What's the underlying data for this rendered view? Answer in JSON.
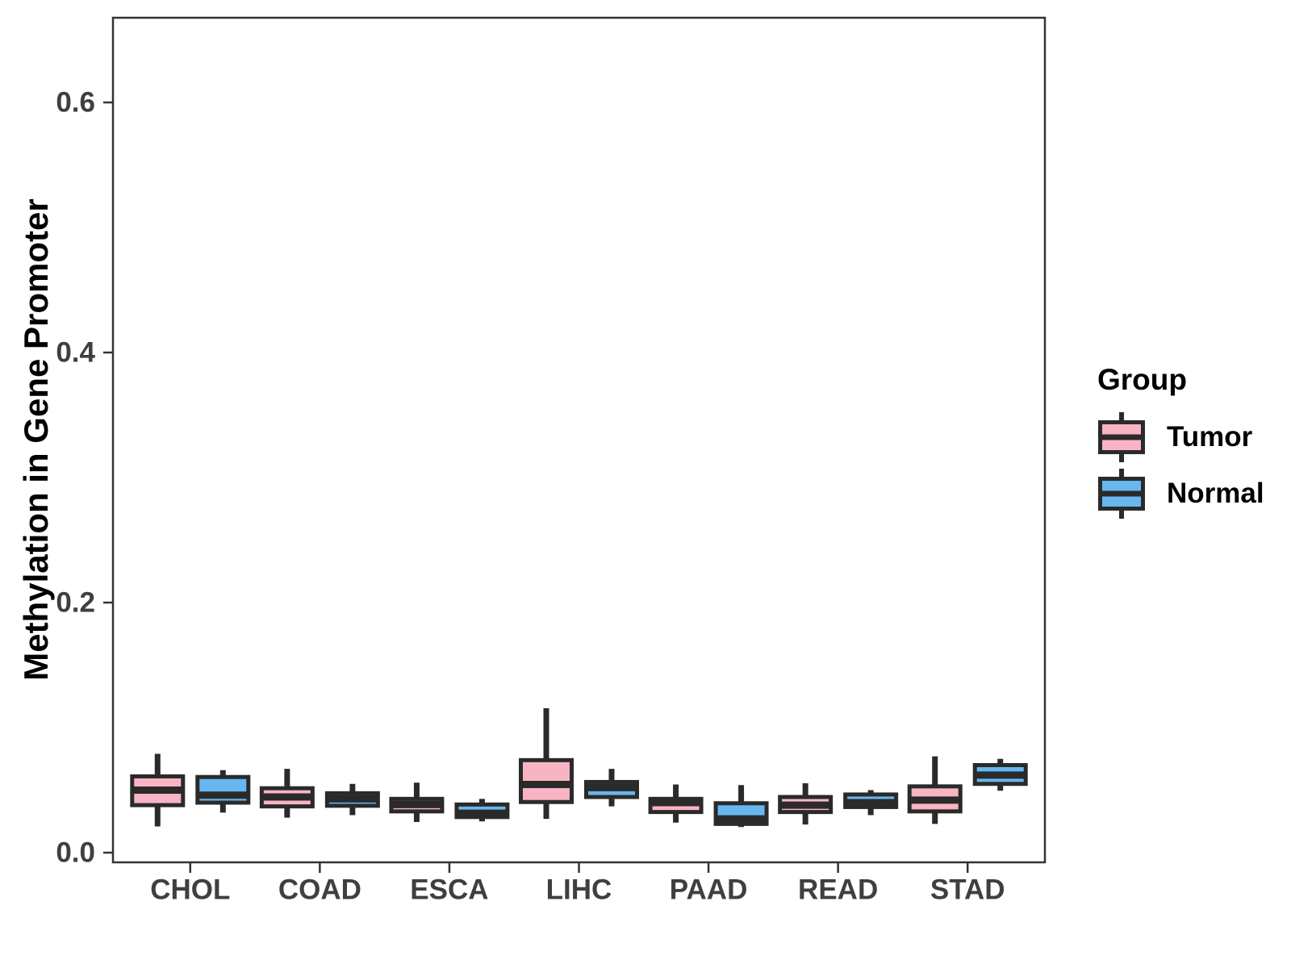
{
  "figure": {
    "background": "#FFFFFF"
  },
  "y_axis": {
    "title": "Methylation in Gene Promoter",
    "tick_labels": [
      "0.0",
      "0.2",
      "0.4",
      "0.6"
    ]
  },
  "x_axis": {
    "categories": [
      "CHOL",
      "COAD",
      "ESCA",
      "LIHC",
      "PAAD",
      "READ",
      "STAD"
    ]
  },
  "legend": {
    "title": "Group",
    "items": [
      {
        "label": "Tumor",
        "color": "#F9B4C3"
      },
      {
        "label": "Normal",
        "color": "#67B7F0"
      }
    ]
  },
  "style": {
    "box_border_color": "#2A2A2A",
    "panel_border_color": "#333333",
    "axis_text_color": "#3F3F3F",
    "tumor_fill": "#F9B4C3",
    "normal_fill": "#67B7F0"
  },
  "chart_data": {
    "type": "boxplot",
    "title": "",
    "xlabel": "",
    "ylabel": "Methylation in Gene Promoter",
    "ylim": [
      -0.008,
      0.668
    ],
    "yticks": [
      0.0,
      0.2,
      0.4,
      0.6
    ],
    "grid": false,
    "legend_position": "right",
    "categories": [
      "CHOL",
      "COAD",
      "ESCA",
      "LIHC",
      "PAAD",
      "READ",
      "STAD"
    ],
    "series": [
      {
        "name": "Tumor",
        "color": "#F9B4C3",
        "boxes": [
          {
            "category": "CHOL",
            "whisker_low": 0.021,
            "q1": 0.038,
            "median": 0.05,
            "q3": 0.061,
            "whisker_high": 0.079
          },
          {
            "category": "COAD",
            "whisker_low": 0.028,
            "q1": 0.037,
            "median": 0.0445,
            "q3": 0.0515,
            "whisker_high": 0.067
          },
          {
            "category": "ESCA",
            "whisker_low": 0.0245,
            "q1": 0.033,
            "median": 0.0385,
            "q3": 0.043,
            "whisker_high": 0.056
          },
          {
            "category": "LIHC",
            "whisker_low": 0.027,
            "q1": 0.0405,
            "median": 0.0545,
            "q3": 0.074,
            "whisker_high": 0.1155
          },
          {
            "category": "PAAD",
            "whisker_low": 0.024,
            "q1": 0.0325,
            "median": 0.04,
            "q3": 0.043,
            "whisker_high": 0.0545
          },
          {
            "category": "READ",
            "whisker_low": 0.0225,
            "q1": 0.0325,
            "median": 0.038,
            "q3": 0.0445,
            "whisker_high": 0.0555
          },
          {
            "category": "STAD",
            "whisker_low": 0.023,
            "q1": 0.033,
            "median": 0.042,
            "q3": 0.053,
            "whisker_high": 0.077
          }
        ]
      },
      {
        "name": "Normal",
        "color": "#67B7F0",
        "boxes": [
          {
            "category": "CHOL",
            "whisker_low": 0.032,
            "q1": 0.04,
            "median": 0.046,
            "q3": 0.0605,
            "whisker_high": 0.066
          },
          {
            "category": "COAD",
            "whisker_low": 0.03,
            "q1": 0.0375,
            "median": 0.043,
            "q3": 0.0475,
            "whisker_high": 0.055
          },
          {
            "category": "ESCA",
            "whisker_low": 0.025,
            "q1": 0.0285,
            "median": 0.0315,
            "q3": 0.0385,
            "whisker_high": 0.043
          },
          {
            "category": "LIHC",
            "whisker_low": 0.037,
            "q1": 0.0445,
            "median": 0.052,
            "q3": 0.0565,
            "whisker_high": 0.067
          },
          {
            "category": "PAAD",
            "whisker_low": 0.0205,
            "q1": 0.023,
            "median": 0.027,
            "q3": 0.0395,
            "whisker_high": 0.054
          },
          {
            "category": "READ",
            "whisker_low": 0.03,
            "q1": 0.0365,
            "median": 0.04,
            "q3": 0.0465,
            "whisker_high": 0.05
          },
          {
            "category": "STAD",
            "whisker_low": 0.0495,
            "q1": 0.055,
            "median": 0.062,
            "q3": 0.07,
            "whisker_high": 0.075
          }
        ]
      }
    ]
  }
}
